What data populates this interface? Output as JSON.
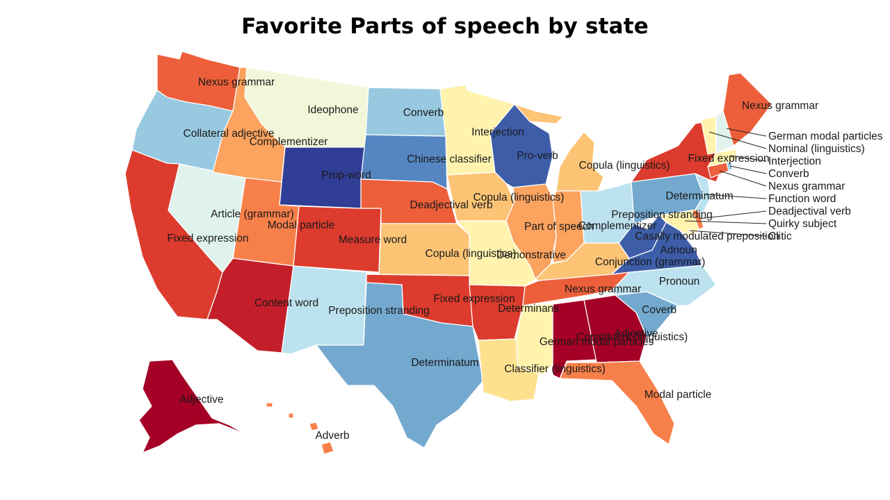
{
  "title": "Favorite Parts of speech by state",
  "colors": {
    "c1": "#a50026",
    "c2": "#c31e2a",
    "c3": "#dc3b2d",
    "c4": "#ec5f3a",
    "c5": "#f7804a",
    "c6": "#fba35f",
    "c7": "#fdc476",
    "c8": "#fee18f",
    "c9": "#fff3ae",
    "c10": "#f2f7d9",
    "c11": "#e0f2ec",
    "c12": "#bde2ef",
    "c13": "#98c9e0",
    "c14": "#74a9cf",
    "c15": "#5586c1",
    "c16": "#3d5da8",
    "c17": "#313e95"
  },
  "states": {
    "WA": {
      "label": "Nexus grammar"
    },
    "OR": {
      "label": "Collateral adjective"
    },
    "CA": {
      "label": "Fixed expression"
    },
    "NV": {
      "label": "Article (grammar)"
    },
    "ID": {
      "label": "Complementizer"
    },
    "MT": {
      "label": "Ideophone"
    },
    "WY": {
      "label": "Prop-word"
    },
    "UT": {
      "label": "Modal particle"
    },
    "CO": {
      "label": "Measure word"
    },
    "AZ": {
      "label": "Content word"
    },
    "NM": {
      "label": "Preposition stranding"
    },
    "ND": {
      "label": "Converb"
    },
    "SD": {
      "label": "Chinese classifier"
    },
    "NE": {
      "label": "Deadjectival verb"
    },
    "KS": {
      "label": "Copula (linguistics)"
    },
    "OK": {
      "label": "Fixed expression"
    },
    "TX": {
      "label": "Determinatum"
    },
    "MN": {
      "label": "Interjection"
    },
    "IA": {
      "label": "Copula (linguistics)"
    },
    "MO": {
      "label": "Demonstrative"
    },
    "AR": {
      "label": "Determinans"
    },
    "LA": {
      "label": "Classifier (linguistics)"
    },
    "WI": {
      "label": "Pro-verb"
    },
    "IL": {
      "label": "Part of speech"
    },
    "MI": {
      "label": "Copula (linguistics)"
    },
    "IN": {
      "label": "Complementizer"
    },
    "OH": {
      "label": "Preposition stranding"
    },
    "KY": {
      "label": "Conjunction (grammar)"
    },
    "TN": {
      "label": "Nexus grammar"
    },
    "MS": {
      "label": "German modal particles"
    },
    "AL": {
      "label": "Constituent (linguistics)"
    },
    "GA": {
      "label": "Adjective"
    },
    "FL": {
      "label": "Modal particle"
    },
    "SC": {
      "label": "Coverb"
    },
    "NC": {
      "label": "Pronoun"
    },
    "VA": {
      "label": "Adnoun"
    },
    "WV": {
      "label": "Casally modulated preposition"
    },
    "PA": {
      "label": "Determinatum"
    },
    "NY": {
      "label": "Fixed expression"
    },
    "ME": {
      "label": "Nexus grammar"
    },
    "AK": {
      "label": "Adjective"
    },
    "HI": {
      "label": "Adverb"
    }
  },
  "callouts": [
    {
      "state": "NH",
      "label": "German modal particles"
    },
    {
      "state": "VT",
      "label": "Nominal (linguistics)"
    },
    {
      "state": "MA",
      "label": "Interjection"
    },
    {
      "state": "RI",
      "label": "Converb"
    },
    {
      "state": "CT",
      "label": "Nexus grammar"
    },
    {
      "state": "NJ",
      "label": "Function word"
    },
    {
      "state": "DE",
      "label": "Deadjectival verb"
    },
    {
      "state": "MD",
      "label": "Quirky subject"
    },
    {
      "state": "DC",
      "label": "Clitic"
    }
  ]
}
